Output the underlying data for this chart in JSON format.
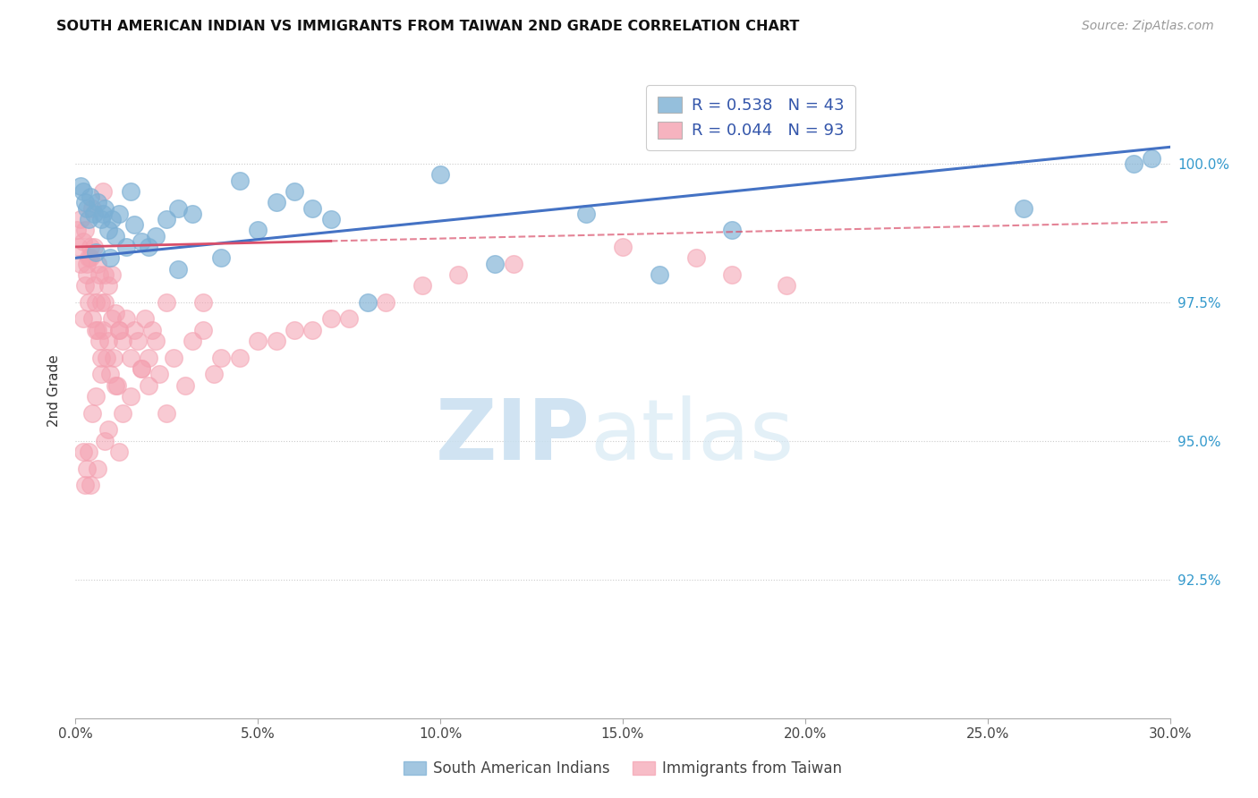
{
  "title": "SOUTH AMERICAN INDIAN VS IMMIGRANTS FROM TAIWAN 2ND GRADE CORRELATION CHART",
  "source": "Source: ZipAtlas.com",
  "ylabel": "2nd Grade",
  "xlabel_ticks": [
    "0.0%",
    "5.0%",
    "10.0%",
    "15.0%",
    "20.0%",
    "25.0%",
    "30.0%"
  ],
  "xlabel_vals": [
    0.0,
    5.0,
    10.0,
    15.0,
    20.0,
    25.0,
    30.0
  ],
  "ytick_labels": [
    "92.5%",
    "95.0%",
    "97.5%",
    "100.0%"
  ],
  "ytick_vals": [
    92.5,
    95.0,
    97.5,
    100.0
  ],
  "xmin": 0.0,
  "xmax": 30.0,
  "ymin": 90.0,
  "ymax": 101.8,
  "blue_color": "#7BAFD4",
  "pink_color": "#F4A0B0",
  "blue_line_color": "#4472C4",
  "pink_line_color": "#D94F6A",
  "legend_R_blue": "R = 0.538",
  "legend_N_blue": "N = 43",
  "legend_R_pink": "R = 0.044",
  "legend_N_pink": "N = 93",
  "legend_label_blue": "South American Indians",
  "legend_label_pink": "Immigrants from Taiwan",
  "watermark_zip": "ZIP",
  "watermark_atlas": "atlas",
  "blue_line_x0": 0.0,
  "blue_line_y0": 98.3,
  "blue_line_x1": 30.0,
  "blue_line_y1": 100.3,
  "pink_line_x0": 0.0,
  "pink_line_y0": 98.5,
  "pink_line_x1": 30.0,
  "pink_line_y1": 98.95,
  "pink_solid_end": 7.0,
  "blue_x": [
    0.2,
    0.3,
    0.4,
    0.5,
    0.6,
    0.7,
    0.8,
    0.9,
    1.0,
    1.1,
    1.2,
    1.4,
    1.6,
    1.8,
    2.0,
    2.2,
    2.5,
    2.8,
    3.2,
    4.0,
    5.0,
    5.5,
    6.0,
    6.5,
    7.0,
    8.0,
    10.0,
    11.5,
    14.0,
    16.0,
    18.0,
    26.0,
    29.0,
    29.5,
    0.15,
    0.25,
    0.35,
    0.55,
    0.75,
    0.95,
    1.5,
    2.8,
    4.5
  ],
  "blue_y": [
    99.5,
    99.2,
    99.4,
    99.1,
    99.3,
    99.0,
    99.2,
    98.8,
    99.0,
    98.7,
    99.1,
    98.5,
    98.9,
    98.6,
    98.5,
    98.7,
    99.0,
    99.2,
    99.1,
    98.3,
    98.8,
    99.3,
    99.5,
    99.2,
    99.0,
    97.5,
    99.8,
    98.2,
    99.1,
    98.0,
    98.8,
    99.2,
    100.0,
    100.1,
    99.6,
    99.3,
    99.0,
    98.4,
    99.1,
    98.3,
    99.5,
    98.1,
    99.7
  ],
  "pink_x": [
    0.05,
    0.1,
    0.15,
    0.2,
    0.25,
    0.3,
    0.35,
    0.4,
    0.45,
    0.5,
    0.55,
    0.6,
    0.65,
    0.7,
    0.75,
    0.8,
    0.85,
    0.9,
    0.95,
    1.0,
    1.05,
    1.1,
    1.15,
    1.2,
    1.3,
    1.4,
    1.5,
    1.6,
    1.7,
    1.8,
    1.9,
    2.0,
    2.1,
    2.2,
    2.3,
    2.5,
    2.7,
    3.0,
    3.2,
    3.5,
    0.2,
    0.3,
    0.4,
    0.5,
    0.6,
    0.7,
    0.8,
    0.9,
    1.0,
    1.1,
    1.2,
    1.3,
    0.15,
    0.25,
    0.35,
    0.55,
    0.45,
    0.65,
    0.75,
    4.0,
    5.0,
    6.0,
    7.0,
    3.8,
    1.5,
    2.0,
    1.8,
    2.5,
    3.5,
    0.8,
    1.2,
    0.9,
    0.6,
    0.4,
    0.35,
    0.3,
    0.25,
    0.2,
    0.55,
    0.7,
    0.45,
    4.5,
    5.5,
    6.5,
    7.5,
    8.5,
    9.5,
    10.5,
    12.0,
    15.0,
    17.0,
    18.0,
    19.5
  ],
  "pink_y": [
    98.8,
    98.5,
    98.2,
    98.6,
    97.8,
    98.0,
    97.5,
    98.3,
    97.2,
    98.5,
    97.0,
    98.2,
    96.8,
    97.5,
    97.0,
    98.0,
    96.5,
    97.8,
    96.2,
    98.0,
    96.5,
    97.3,
    96.0,
    97.0,
    96.8,
    97.2,
    96.5,
    97.0,
    96.8,
    96.3,
    97.2,
    96.5,
    97.0,
    96.8,
    96.2,
    97.5,
    96.5,
    96.0,
    96.8,
    97.0,
    97.2,
    98.2,
    98.5,
    97.8,
    97.0,
    96.5,
    97.5,
    96.8,
    97.2,
    96.0,
    97.0,
    95.5,
    99.0,
    98.8,
    98.3,
    97.5,
    99.2,
    98.0,
    99.5,
    96.5,
    96.8,
    97.0,
    97.2,
    96.2,
    95.8,
    96.0,
    96.3,
    95.5,
    97.5,
    95.0,
    94.8,
    95.2,
    94.5,
    94.2,
    94.8,
    94.5,
    94.2,
    94.8,
    95.8,
    96.2,
    95.5,
    96.5,
    96.8,
    97.0,
    97.2,
    97.5,
    97.8,
    98.0,
    98.2,
    98.5,
    98.3,
    98.0,
    97.8
  ]
}
